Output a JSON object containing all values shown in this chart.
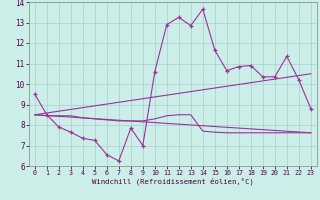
{
  "xlabel": "Windchill (Refroidissement éolien,°C)",
  "background_color": "#cceee8",
  "grid_color": "#aacccc",
  "line_color": "#993399",
  "xlim": [
    -0.5,
    23.5
  ],
  "ylim": [
    6,
    14
  ],
  "yticks": [
    6,
    7,
    8,
    9,
    10,
    11,
    12,
    13,
    14
  ],
  "xticks": [
    0,
    1,
    2,
    3,
    4,
    5,
    6,
    7,
    8,
    9,
    10,
    11,
    12,
    13,
    14,
    15,
    16,
    17,
    18,
    19,
    20,
    21,
    22,
    23
  ],
  "series1_x": [
    0,
    1,
    2,
    3,
    4,
    5,
    6,
    7,
    8,
    9,
    10,
    11,
    12,
    13,
    14,
    15,
    16,
    17,
    18,
    19,
    20,
    21,
    22,
    23
  ],
  "series1_y": [
    9.5,
    8.5,
    7.9,
    7.65,
    7.35,
    7.25,
    6.55,
    6.25,
    7.85,
    7.0,
    10.6,
    12.9,
    13.25,
    12.85,
    13.65,
    11.65,
    10.65,
    10.85,
    10.9,
    10.35,
    10.35,
    11.35,
    10.2,
    8.8
  ],
  "series2_x": [
    0,
    1,
    2,
    3,
    4,
    5,
    6,
    7,
    8,
    9,
    10,
    11,
    12,
    13,
    14,
    15,
    16,
    17,
    18,
    19,
    20,
    21,
    22,
    23
  ],
  "series2_y": [
    8.5,
    8.45,
    8.45,
    8.45,
    8.35,
    8.3,
    8.25,
    8.2,
    8.2,
    8.2,
    8.3,
    8.45,
    8.5,
    8.5,
    7.7,
    7.65,
    7.62,
    7.62,
    7.62,
    7.62,
    7.62,
    7.62,
    7.62,
    7.62
  ],
  "series3_x": [
    0,
    23
  ],
  "series3_y": [
    8.5,
    10.5
  ],
  "series4_x": [
    0,
    23
  ],
  "series4_y": [
    8.5,
    7.62
  ]
}
